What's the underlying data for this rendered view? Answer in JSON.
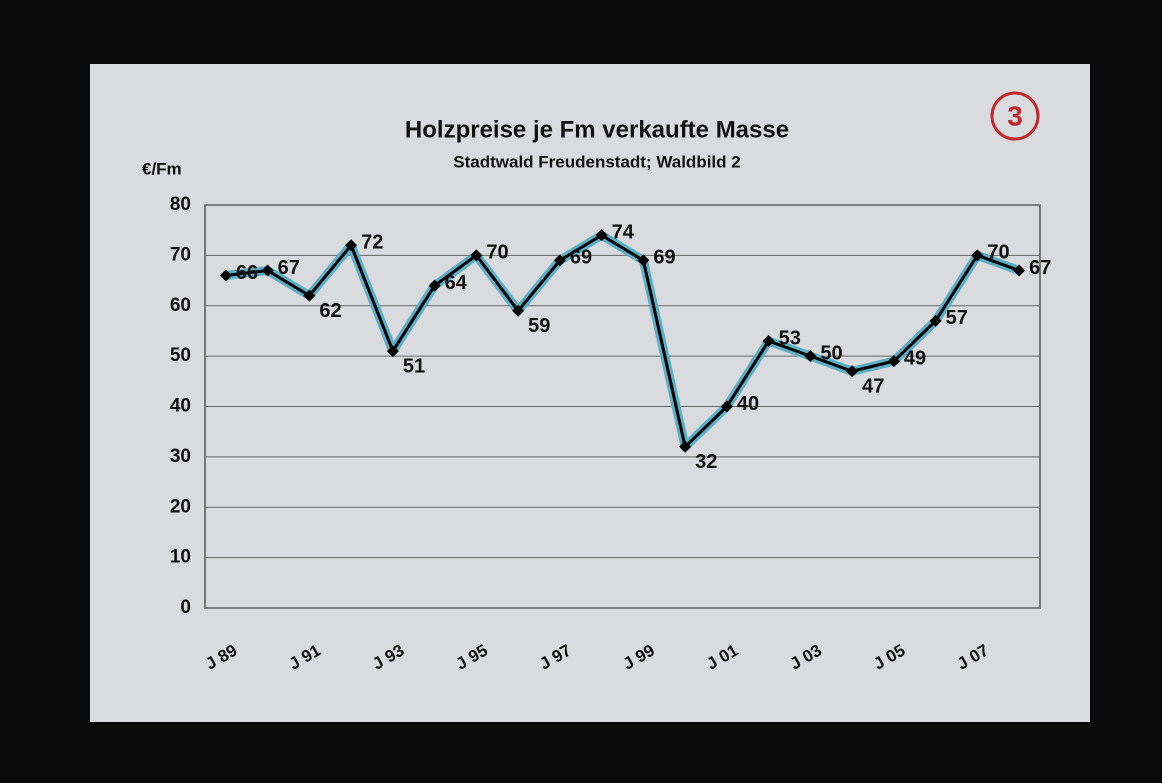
{
  "chart_data": {
    "type": "line",
    "title": "Holzpreise je Fm verkaufte Masse",
    "subtitle": "Stadtwald Freudenstadt; Waldbild 2",
    "y_label": "€/Fm",
    "annotation": "3",
    "categories": [
      "J 89",
      null,
      "J 91",
      null,
      "J 93",
      null,
      "J 95",
      null,
      "J 97",
      null,
      "J 99",
      null,
      "J 01",
      null,
      "J 03",
      null,
      "J 05",
      null,
      "J 07",
      null
    ],
    "values": [
      66,
      67,
      62,
      72,
      51,
      64,
      70,
      59,
      69,
      74,
      69,
      32,
      40,
      53,
      50,
      47,
      49,
      57,
      70,
      67
    ],
    "color": "#000000",
    "halo_color": "#5aaec6",
    "ylim": [
      0,
      80
    ],
    "yticks": [
      0,
      10,
      20,
      30,
      40,
      50,
      60,
      70,
      80
    ],
    "grid": true
  }
}
